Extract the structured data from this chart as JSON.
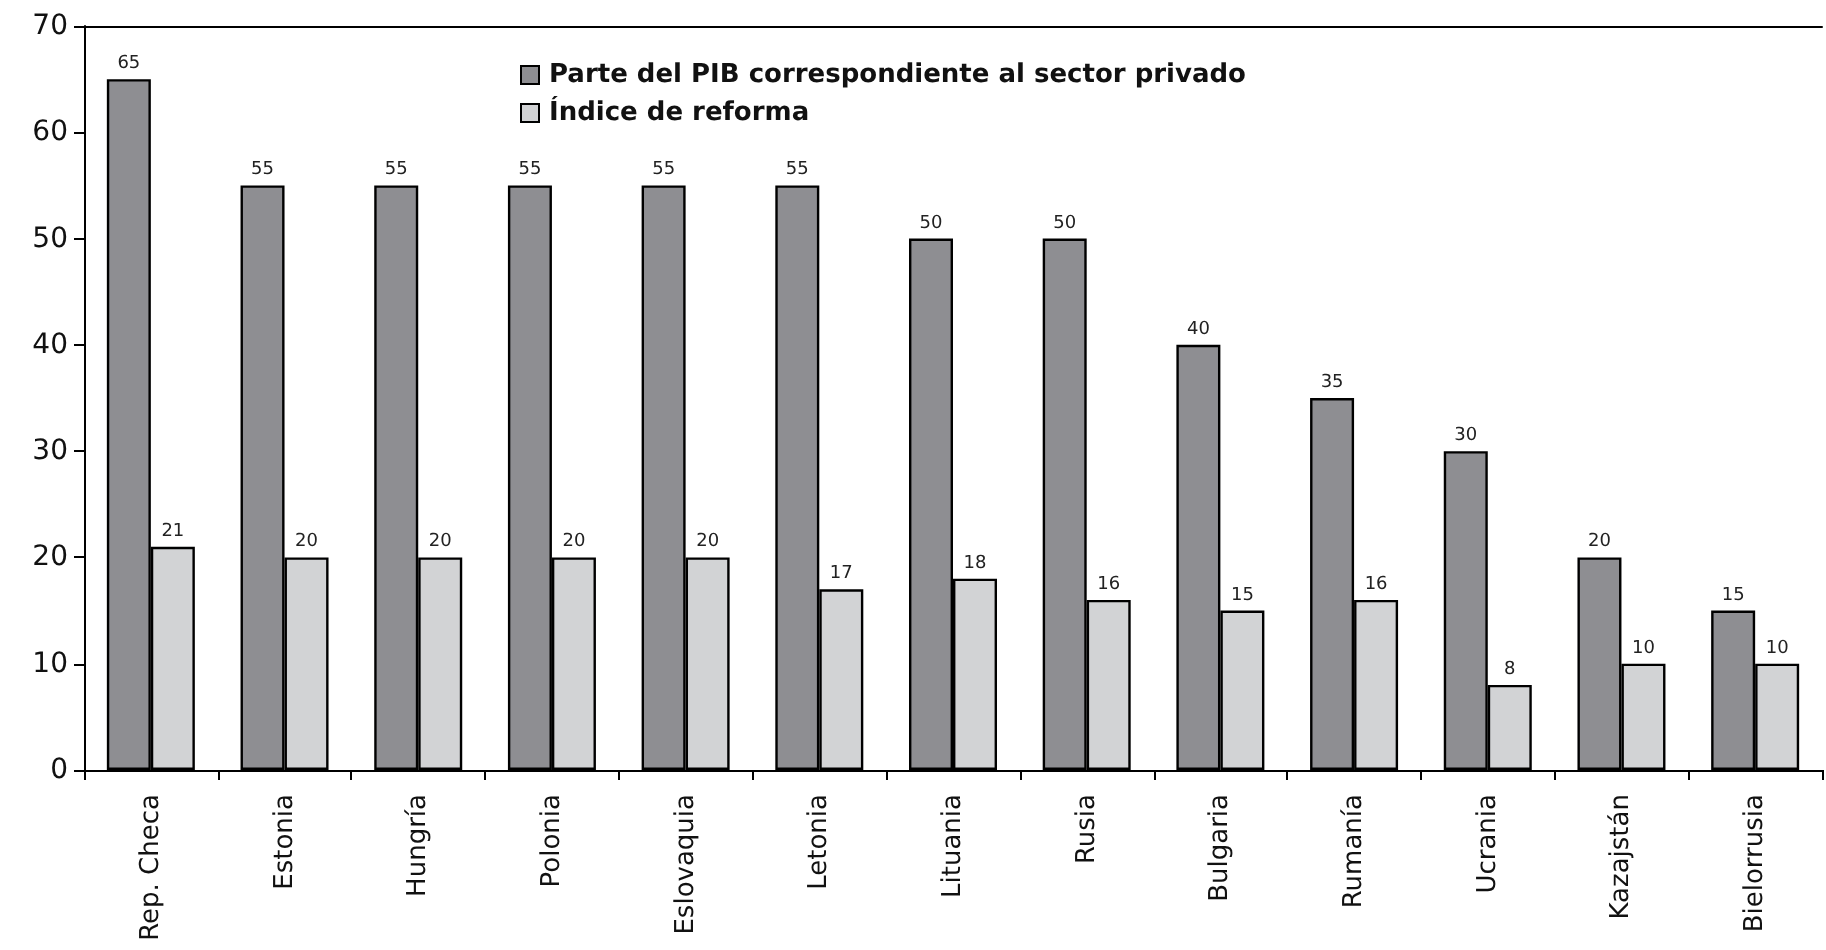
{
  "chart_data": {
    "type": "bar",
    "categories": [
      "Rep. Checa",
      "Estonia",
      "Hungría",
      "Polonia",
      "Eslovaquia",
      "Letonia",
      "Lituania",
      "Rusia",
      "Bulgaria",
      "Rumanía",
      "Ucrania",
      "Kazajstán",
      "Bielorrusia"
    ],
    "series": [
      {
        "name": "Parte del PIB correspondiente al sector privado",
        "color": "#8e8e92",
        "values": [
          65,
          55,
          55,
          55,
          55,
          55,
          50,
          50,
          40,
          35,
          30,
          20,
          15
        ]
      },
      {
        "name": "Índice de reforma",
        "color": "#d2d3d5",
        "values": [
          21,
          20,
          20,
          20,
          20,
          17,
          18,
          16,
          15,
          16,
          8,
          10,
          10
        ]
      }
    ],
    "ylim": [
      0,
      70
    ],
    "yticks": [
      0,
      10,
      20,
      30,
      40,
      50,
      60,
      70
    ],
    "grid": false,
    "legend": "top",
    "data_labels": true
  }
}
